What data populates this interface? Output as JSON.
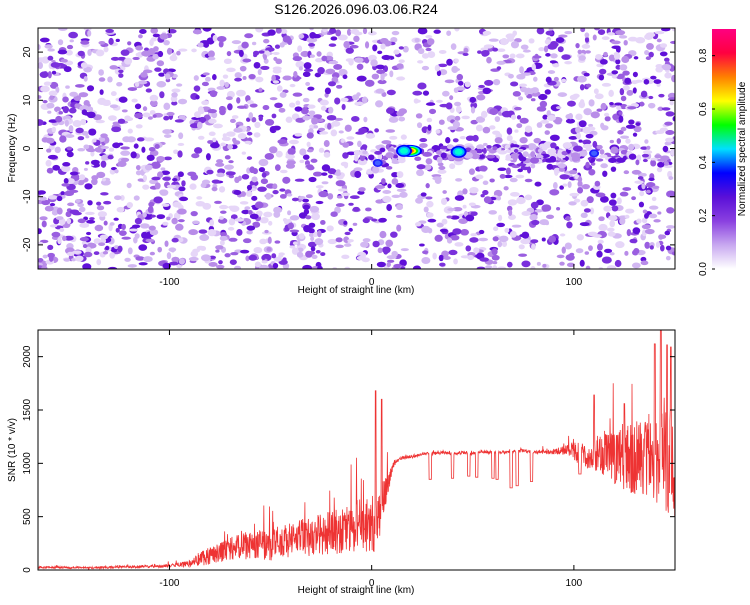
{
  "title": "S126.2026.096.03.06.R24",
  "chart_data": [
    {
      "type": "heatmap",
      "xlabel": "Height of straight line (km)",
      "ylabel": "Frequency (Hz)",
      "xlim": [
        -165,
        150
      ],
      "ylim": [
        -25,
        25
      ],
      "xticks": [
        -100,
        0,
        100
      ],
      "yticks": [
        -20,
        -10,
        0,
        10,
        20
      ],
      "colorbar": {
        "label": "Normalized spectral amplitude",
        "range": [
          0.0,
          0.9
        ],
        "ticks": [
          0.0,
          0.2,
          0.4,
          0.6,
          0.8
        ],
        "colors": [
          "#ffffff",
          "#c8a8f0",
          "#8a40e0",
          "#5a10d8",
          "#0000ff",
          "#00e0ff",
          "#00ff00",
          "#ffff00",
          "#ff8000",
          "#ff0040",
          "#ff0080"
        ]
      },
      "gaps_km": [
        [
          -93,
          -89
        ],
        [
          17,
          22
        ]
      ],
      "peaks": [
        {
          "x": 19,
          "y": -0.5,
          "amplitude": 0.85
        },
        {
          "x": 16,
          "y": -0.5,
          "amplitude": 0.55
        },
        {
          "x": 43,
          "y": -0.7,
          "amplitude": 0.4
        },
        {
          "x": 3,
          "y": -3,
          "amplitude": 0.3
        },
        {
          "x": 110,
          "y": -1,
          "amplitude": 0.3
        }
      ]
    },
    {
      "type": "line",
      "xlabel": "Height of straight line (km)",
      "ylabel": "SNR (10 * v/v)",
      "xlim": [
        -165,
        150
      ],
      "ylim": [
        0,
        2250
      ],
      "xticks": [
        -100,
        0,
        100
      ],
      "yticks": [
        0,
        500,
        1000,
        1500,
        2000
      ],
      "series": [
        {
          "color": "#ee3333",
          "x": [
            -165,
            -140,
            -120,
            -100,
            -90,
            -85,
            -80,
            -70,
            -60,
            -50,
            -40,
            -30,
            -20,
            -10,
            -5,
            0,
            3,
            6,
            8,
            10,
            12,
            15,
            20,
            25,
            28,
            30,
            35,
            40,
            45,
            50,
            55,
            60,
            65,
            70,
            75,
            80,
            85,
            90,
            95,
            100,
            105,
            110,
            115,
            120,
            125,
            130,
            135,
            140,
            145,
            150
          ],
          "y": [
            25,
            20,
            30,
            40,
            60,
            110,
            140,
            200,
            230,
            240,
            280,
            320,
            350,
            380,
            420,
            430,
            470,
            600,
            800,
            950,
            1020,
            1050,
            1060,
            1090,
            1100,
            1090,
            1100,
            1095,
            1100,
            1090,
            1110,
            1100,
            1100,
            1110,
            1120,
            1100,
            1110,
            1110,
            1120,
            1120,
            1060,
            1080,
            1070,
            1060,
            1040,
            1060,
            1060,
            1040,
            1030,
            1000
          ],
          "noise": [
            10,
            10,
            12,
            15,
            30,
            70,
            90,
            110,
            130,
            150,
            170,
            190,
            200,
            230,
            260,
            280,
            280,
            220,
            120,
            40,
            20,
            15,
            15,
            15,
            15,
            15,
            15,
            15,
            15,
            15,
            15,
            15,
            15,
            15,
            15,
            15,
            20,
            25,
            40,
            90,
            120,
            150,
            200,
            250,
            300,
            350,
            380,
            420,
            500,
            550
          ],
          "dips": [
            {
              "x": 29,
              "y": 850
            },
            {
              "x": 40,
              "y": 860
            },
            {
              "x": 48,
              "y": 880
            },
            {
              "x": 52,
              "y": 870
            },
            {
              "x": 60,
              "y": 860
            },
            {
              "x": 62,
              "y": 850
            },
            {
              "x": 69,
              "y": 770
            },
            {
              "x": 72,
              "y": 790
            },
            {
              "x": 79,
              "y": 830
            },
            {
              "x": 103,
              "y": 900
            }
          ],
          "spikes": [
            {
              "x": 2,
              "y": 1680
            },
            {
              "x": 5,
              "y": 1600
            },
            {
              "x": 110,
              "y": 1640
            },
            {
              "x": 125,
              "y": 1560
            },
            {
              "x": 140,
              "y": 2120
            },
            {
              "x": 143,
              "y": 2250
            },
            {
              "x": 146,
              "y": 2110
            },
            {
              "x": 148,
              "y": 2090
            }
          ]
        }
      ]
    }
  ]
}
